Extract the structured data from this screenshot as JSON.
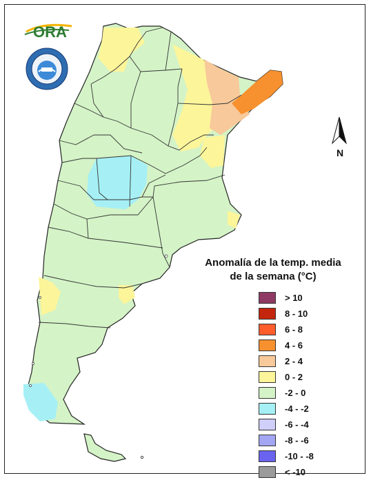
{
  "logo": {
    "text": "ORA",
    "accent": "#2e7d32",
    "sun": "#f5b400"
  },
  "seal": {
    "name": "seal-icon"
  },
  "north": {
    "label": "N"
  },
  "legend": {
    "title_line1": "Anomalía de la temp. media",
    "title_line2": "de la semana (°C)",
    "items": [
      {
        "label": "> 10",
        "color": "#8e3a64"
      },
      {
        "label": "8 - 10",
        "color": "#c3260d"
      },
      {
        "label": "6 - 8",
        "color": "#ff5d2c"
      },
      {
        "label": "4 - 6",
        "color": "#f7902e"
      },
      {
        "label": "2 - 4",
        "color": "#f8c99a"
      },
      {
        "label": "0 - 2",
        "color": "#fcf59a"
      },
      {
        "label": "-2 - 0",
        "color": "#d4f3c7"
      },
      {
        "label": "-4 - -2",
        "color": "#a6f0f5"
      },
      {
        "label": "-6 - -4",
        "color": "#cfcffa"
      },
      {
        "label": "-8 - -6",
        "color": "#a3a6f2"
      },
      {
        "label": "-10 - -8",
        "color": "#6a63ef"
      },
      {
        "label": "< -10",
        "color": "#9b9b9b"
      }
    ]
  }
}
